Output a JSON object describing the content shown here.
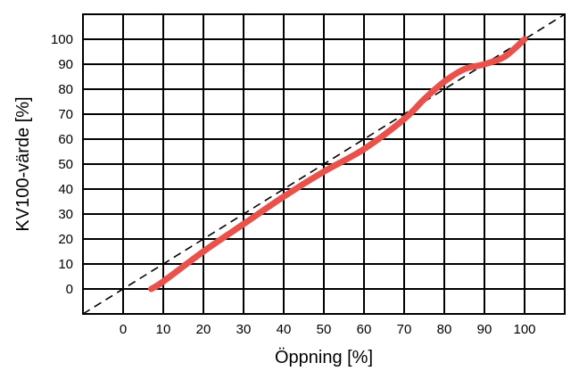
{
  "chart_data": {
    "type": "line",
    "title": "",
    "xlabel": "Öppning [%]",
    "ylabel": "KV100-värde [%]",
    "xlim": [
      -10,
      110
    ],
    "ylim": [
      -10,
      110
    ],
    "x_ticks": [
      0,
      10,
      20,
      30,
      40,
      50,
      60,
      70,
      80,
      90,
      100
    ],
    "y_ticks": [
      0,
      10,
      20,
      30,
      40,
      50,
      60,
      70,
      80,
      90,
      100
    ],
    "grid": true,
    "colors": {
      "curve": "#e8524a",
      "reference": "#000000",
      "grid": "#000000"
    },
    "series": [
      {
        "style": "solid",
        "x": [
          7,
          10,
          20,
          30,
          40,
          50,
          60,
          70,
          75,
          80,
          85,
          90,
          95,
          100
        ],
        "y": [
          0,
          3,
          15,
          26,
          37,
          47,
          56,
          68,
          76,
          83,
          88,
          90,
          93,
          100
        ]
      },
      {
        "style": "dashed",
        "x": [
          -10,
          110
        ],
        "y": [
          -10,
          110
        ]
      }
    ]
  }
}
